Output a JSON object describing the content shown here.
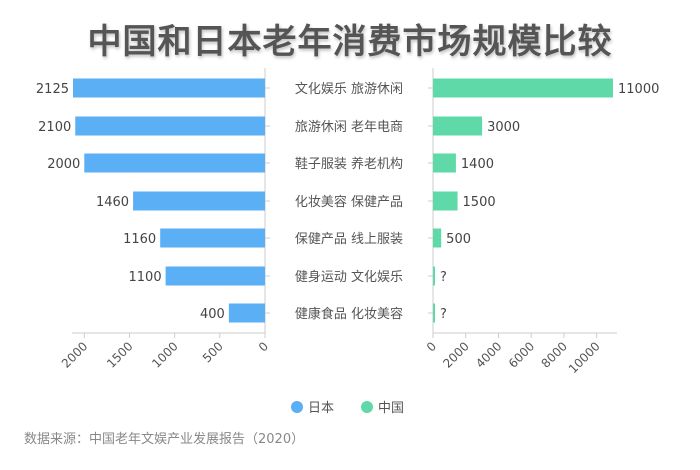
{
  "chart_data": {
    "type": "bar",
    "orientation": "horizontal-butterfly",
    "title": "中国和日本老年消费市场规模比较",
    "source": "数据来源：中国老年文娱产业发展报告（2020）",
    "legend_position": "bottom",
    "grid": false,
    "series": [
      {
        "name": "日本",
        "color": "#5aaff5",
        "categories": [
          "文化娱乐",
          "旅游休闲",
          "鞋子服装",
          "化妆美容",
          "保健产品",
          "健身运动",
          "健康食品"
        ],
        "values": [
          2125,
          2100,
          2000,
          1460,
          1160,
          1100,
          400
        ],
        "labels": [
          "2125",
          "2100",
          "2000",
          "1460",
          "1160",
          "1100",
          "400"
        ],
        "xlim": [
          0,
          2125
        ],
        "ticks": [
          0,
          500,
          1000,
          1500,
          2000
        ]
      },
      {
        "name": "中国",
        "color": "#5fd9a8",
        "categories": [
          "旅游休闲",
          "老年电商",
          "养老机构",
          "保健产品",
          "线上服装",
          "文化娱乐",
          "化妆美容"
        ],
        "values": [
          11000,
          3000,
          1400,
          1500,
          500,
          null,
          null
        ],
        "labels": [
          "11000",
          "3000",
          "1400",
          "1500",
          "500",
          "?",
          "?"
        ],
        "xlim": [
          0,
          11000
        ],
        "ticks": [
          0,
          2000,
          4000,
          6000,
          8000,
          10000
        ]
      }
    ]
  }
}
